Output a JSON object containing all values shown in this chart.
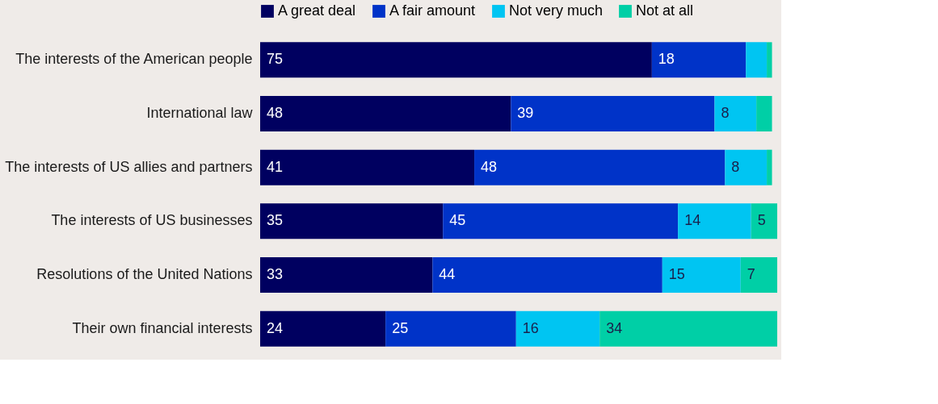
{
  "chart_data": {
    "type": "bar",
    "orientation": "horizontal",
    "stacked": true,
    "legend": "top",
    "tick_labels": "y",
    "xlim": [
      0,
      99
    ],
    "categories": [
      "The interests of the American people",
      "International law",
      "The interests of US allies and partners",
      "The interests of US businesses",
      "Resolutions of the United Nations",
      "Their own financial interests"
    ],
    "series": [
      {
        "name": "A great deal",
        "color": "#000060",
        "values": [
          75,
          48,
          41,
          35,
          33,
          24
        ],
        "value_labels": [
          "75",
          "48",
          "41",
          "35",
          "33",
          "24"
        ]
      },
      {
        "name": "A fair amount",
        "color": "#0033c8",
        "values": [
          18,
          39,
          48,
          45,
          44,
          25
        ],
        "value_labels": [
          "18",
          "39",
          "48",
          "45",
          "44",
          "25"
        ]
      },
      {
        "name": "Not very much",
        "color": "#00c5f2",
        "values": [
          4,
          8,
          8,
          14,
          15,
          16
        ],
        "value_labels": [
          null,
          "8",
          "8",
          "14",
          "15",
          "16"
        ]
      },
      {
        "name": "Not at all",
        "color": "#00cfa6",
        "values": [
          1,
          3,
          1,
          5,
          7,
          34
        ],
        "value_labels": [
          null,
          null,
          null,
          "5",
          "7",
          "34"
        ]
      }
    ]
  }
}
